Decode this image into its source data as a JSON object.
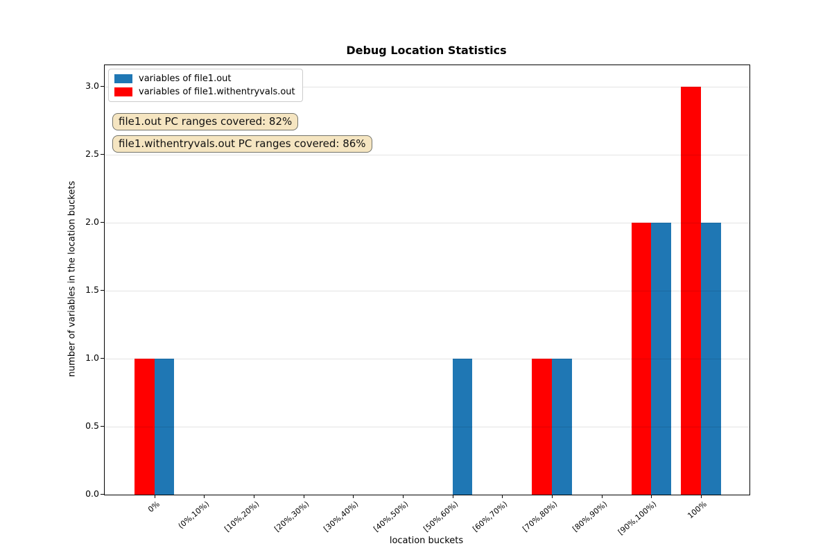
{
  "chart_data": {
    "type": "bar",
    "title": "Debug Location Statistics",
    "xlabel": "location buckets",
    "ylabel": "number of variables in the location buckets",
    "categories": [
      "0%",
      "(0%,10%)",
      "[10%,20%)",
      "[20%,30%)",
      "[30%,40%)",
      "[40%,50%)",
      "[50%,60%)",
      "[60%,70%)",
      "[70%,80%)",
      "[80%,90%)",
      "[90%,100%)",
      "100%"
    ],
    "series": [
      {
        "name": "variables of file1.withentryvals.out",
        "color": "#ff0000",
        "side": "left",
        "values": [
          1,
          0,
          0,
          0,
          0,
          0,
          0,
          0,
          1,
          0,
          2,
          3
        ]
      },
      {
        "name": "variables of file1.out",
        "color": "#1f77b4",
        "side": "right",
        "values": [
          1,
          0,
          0,
          0,
          0,
          0,
          1,
          0,
          1,
          0,
          2,
          2
        ]
      }
    ],
    "ylim": [
      0,
      3.16
    ],
    "yticks": [
      0,
      0.5,
      1,
      1.5,
      2,
      2.5,
      3
    ],
    "grid": "horizontal",
    "legend": {
      "position": "upper left",
      "entries": [
        {
          "label": "variables of file1.out",
          "color": "#1f77b4"
        },
        {
          "label": "variables of file1.withentryvals.out",
          "color": "#ff0000"
        }
      ]
    },
    "annotations": [
      {
        "text": "file1.out PC ranges covered: 82%"
      },
      {
        "text": "file1.withentryvals.out PC ranges covered: 86%"
      }
    ]
  },
  "colors": {
    "annotation_bg": "#f5e5c1",
    "annotation_border": "#73736a",
    "bar_blue": "#1f77b4",
    "bar_red": "#ff0000",
    "grid": "#e2e2e2"
  }
}
